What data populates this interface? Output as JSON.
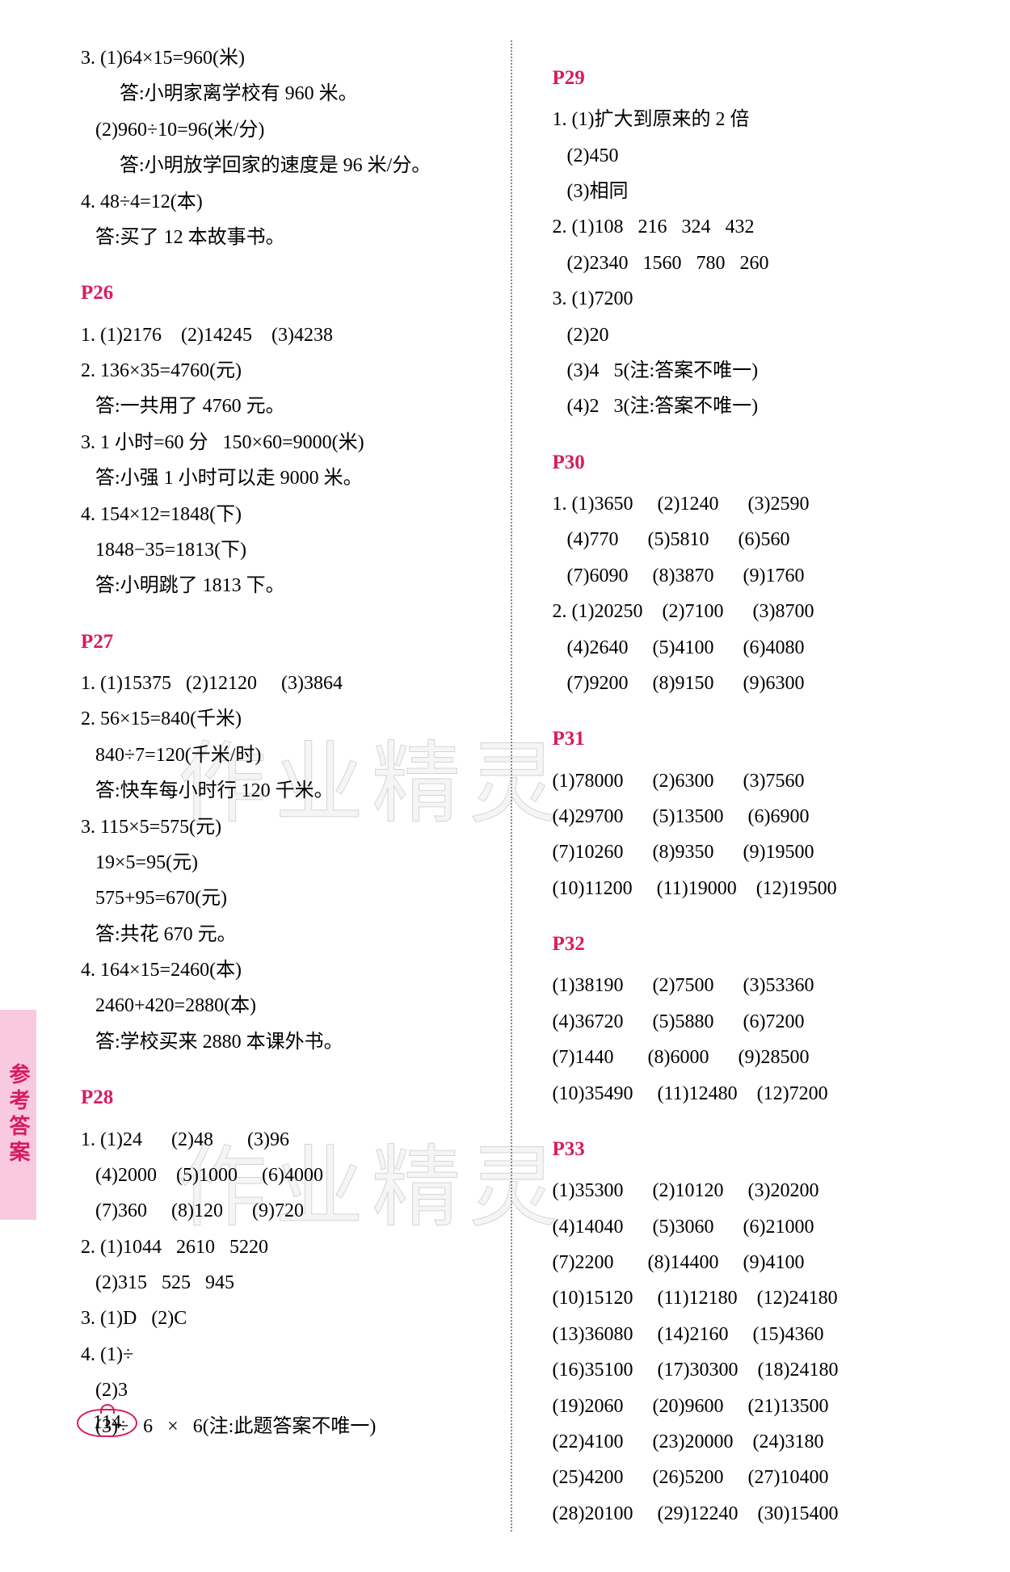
{
  "side_tab": "参考答案",
  "page_number": "114",
  "watermark": "作业精灵",
  "left": {
    "pre": [
      "3. (1)64×15=960(米)",
      "        答:小明家离学校有 960 米。",
      "   (2)960÷10=96(米/分)",
      "        答:小明放学回家的速度是 96 米/分。",
      "4. 48÷4=12(本)",
      "   答:买了 12 本故事书。"
    ],
    "sections": [
      {
        "header": "P26",
        "lines": [
          "1. (1)2176    (2)14245    (3)4238",
          "2. 136×35=4760(元)",
          "   答:一共用了 4760 元。",
          "3. 1 小时=60 分   150×60=9000(米)",
          "   答:小强 1 小时可以走 9000 米。",
          "4. 154×12=1848(下)",
          "   1848−35=1813(下)",
          "   答:小明跳了 1813 下。"
        ]
      },
      {
        "header": "P27",
        "lines": [
          "1. (1)15375   (2)12120     (3)3864",
          "2. 56×15=840(千米)",
          "   840÷7=120(千米/时)",
          "   答:快车每小时行 120 千米。",
          "3. 115×5=575(元)",
          "   19×5=95(元)",
          "   575+95=670(元)",
          "   答:共花 670 元。",
          "4. 164×15=2460(本)",
          "   2460+420=2880(本)",
          "   答:学校买来 2880 本课外书。"
        ]
      },
      {
        "header": "P28",
        "lines": [
          "1. (1)24      (2)48       (3)96",
          "   (4)2000    (5)1000     (6)4000",
          "   (7)360     (8)120      (9)720",
          "2. (1)1044   2610   5220",
          "   (2)315   525   945",
          "3. (1)D   (2)C",
          "4. (1)÷",
          "   (2)3",
          "   (3)÷   6   ×   6(注:此题答案不唯一)"
        ]
      }
    ]
  },
  "right": {
    "sections": [
      {
        "header": "P29",
        "lines": [
          "1. (1)扩大到原来的 2 倍",
          "   (2)450",
          "   (3)相同",
          "2. (1)108   216   324   432",
          "   (2)2340   1560   780   260",
          "3. (1)7200",
          "   (2)20",
          "   (3)4   5(注:答案不唯一)",
          "   (4)2   3(注:答案不唯一)"
        ]
      },
      {
        "header": "P30",
        "lines": [
          "1. (1)3650     (2)1240      (3)2590",
          "   (4)770      (5)5810      (6)560",
          "   (7)6090     (8)3870      (9)1760",
          "2. (1)20250    (2)7100      (3)8700",
          "   (4)2640     (5)4100      (6)4080",
          "   (7)9200     (8)9150      (9)6300"
        ]
      },
      {
        "header": "P31",
        "lines": [
          "(1)78000      (2)6300      (3)7560",
          "(4)29700      (5)13500     (6)6900",
          "(7)10260      (8)9350      (9)19500",
          "(10)11200     (11)19000    (12)19500"
        ]
      },
      {
        "header": "P32",
        "lines": [
          "(1)38190      (2)7500      (3)53360",
          "(4)36720      (5)5880      (6)7200",
          "(7)1440       (8)6000      (9)28500",
          "(10)35490     (11)12480    (12)7200"
        ]
      },
      {
        "header": "P33",
        "lines": [
          "(1)35300      (2)10120     (3)20200",
          "(4)14040      (5)3060      (6)21000",
          "(7)2200       (8)14400     (9)4100",
          "(10)15120     (11)12180    (12)24180",
          "(13)36080     (14)2160     (15)4360",
          "(16)35100     (17)30300    (18)24180",
          "(19)2060      (20)9600     (21)13500",
          "(22)4100      (23)20000    (24)3180",
          "(25)4200      (26)5200     (27)10400",
          "(28)20100     (29)12240    (30)15400"
        ]
      }
    ]
  }
}
